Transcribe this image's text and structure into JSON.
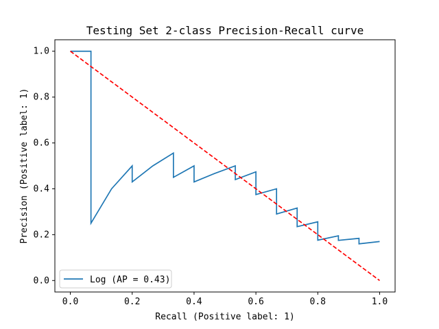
{
  "chart_data": {
    "type": "line",
    "title": "Testing Set 2-class Precision-Recall curve",
    "xlabel": "Recall (Positive label: 1)",
    "ylabel": "Precision (Positive label: 1)",
    "xlim": [
      -0.05,
      1.05
    ],
    "ylim": [
      -0.05,
      1.05
    ],
    "x_ticks": [
      0.0,
      0.2,
      0.4,
      0.6,
      0.8,
      1.0
    ],
    "y_ticks": [
      0.0,
      0.2,
      0.4,
      0.6,
      0.8,
      1.0
    ],
    "x_tick_labels": [
      "0.0",
      "0.2",
      "0.4",
      "0.6",
      "0.8",
      "1.0"
    ],
    "y_tick_labels": [
      "0.0",
      "0.2",
      "0.4",
      "0.6",
      "0.8",
      "1.0"
    ],
    "grid": false,
    "legend_placement": "lower-left",
    "series": [
      {
        "name": "Log (AP = 0.43)",
        "style": "step-post",
        "color": "#1f77b4",
        "x": [
          0.0,
          0.0667,
          0.0667,
          0.1333,
          0.2,
          0.2,
          0.2667,
          0.3333,
          0.3333,
          0.4,
          0.4,
          0.4667,
          0.5333,
          0.5333,
          0.6,
          0.6,
          0.6667,
          0.6667,
          0.7333,
          0.7333,
          0.8,
          0.8,
          0.8667,
          0.8667,
          0.9333,
          0.9333,
          1.0
        ],
        "y": [
          1.0,
          1.0,
          0.25,
          0.4,
          0.5,
          0.43,
          0.5,
          0.556,
          0.45,
          0.5,
          0.43,
          0.467,
          0.5,
          0.44,
          0.474,
          0.375,
          0.4,
          0.29,
          0.316,
          0.235,
          0.256,
          0.176,
          0.195,
          0.175,
          0.184,
          0.16,
          0.17
        ]
      },
      {
        "name": "",
        "style": "dashed",
        "color": "#ff0000",
        "x": [
          0.0,
          1.0
        ],
        "y": [
          1.0,
          0.0
        ]
      }
    ],
    "legend": [
      {
        "label": "Log (AP = 0.43)",
        "color": "#1f77b4"
      }
    ]
  }
}
